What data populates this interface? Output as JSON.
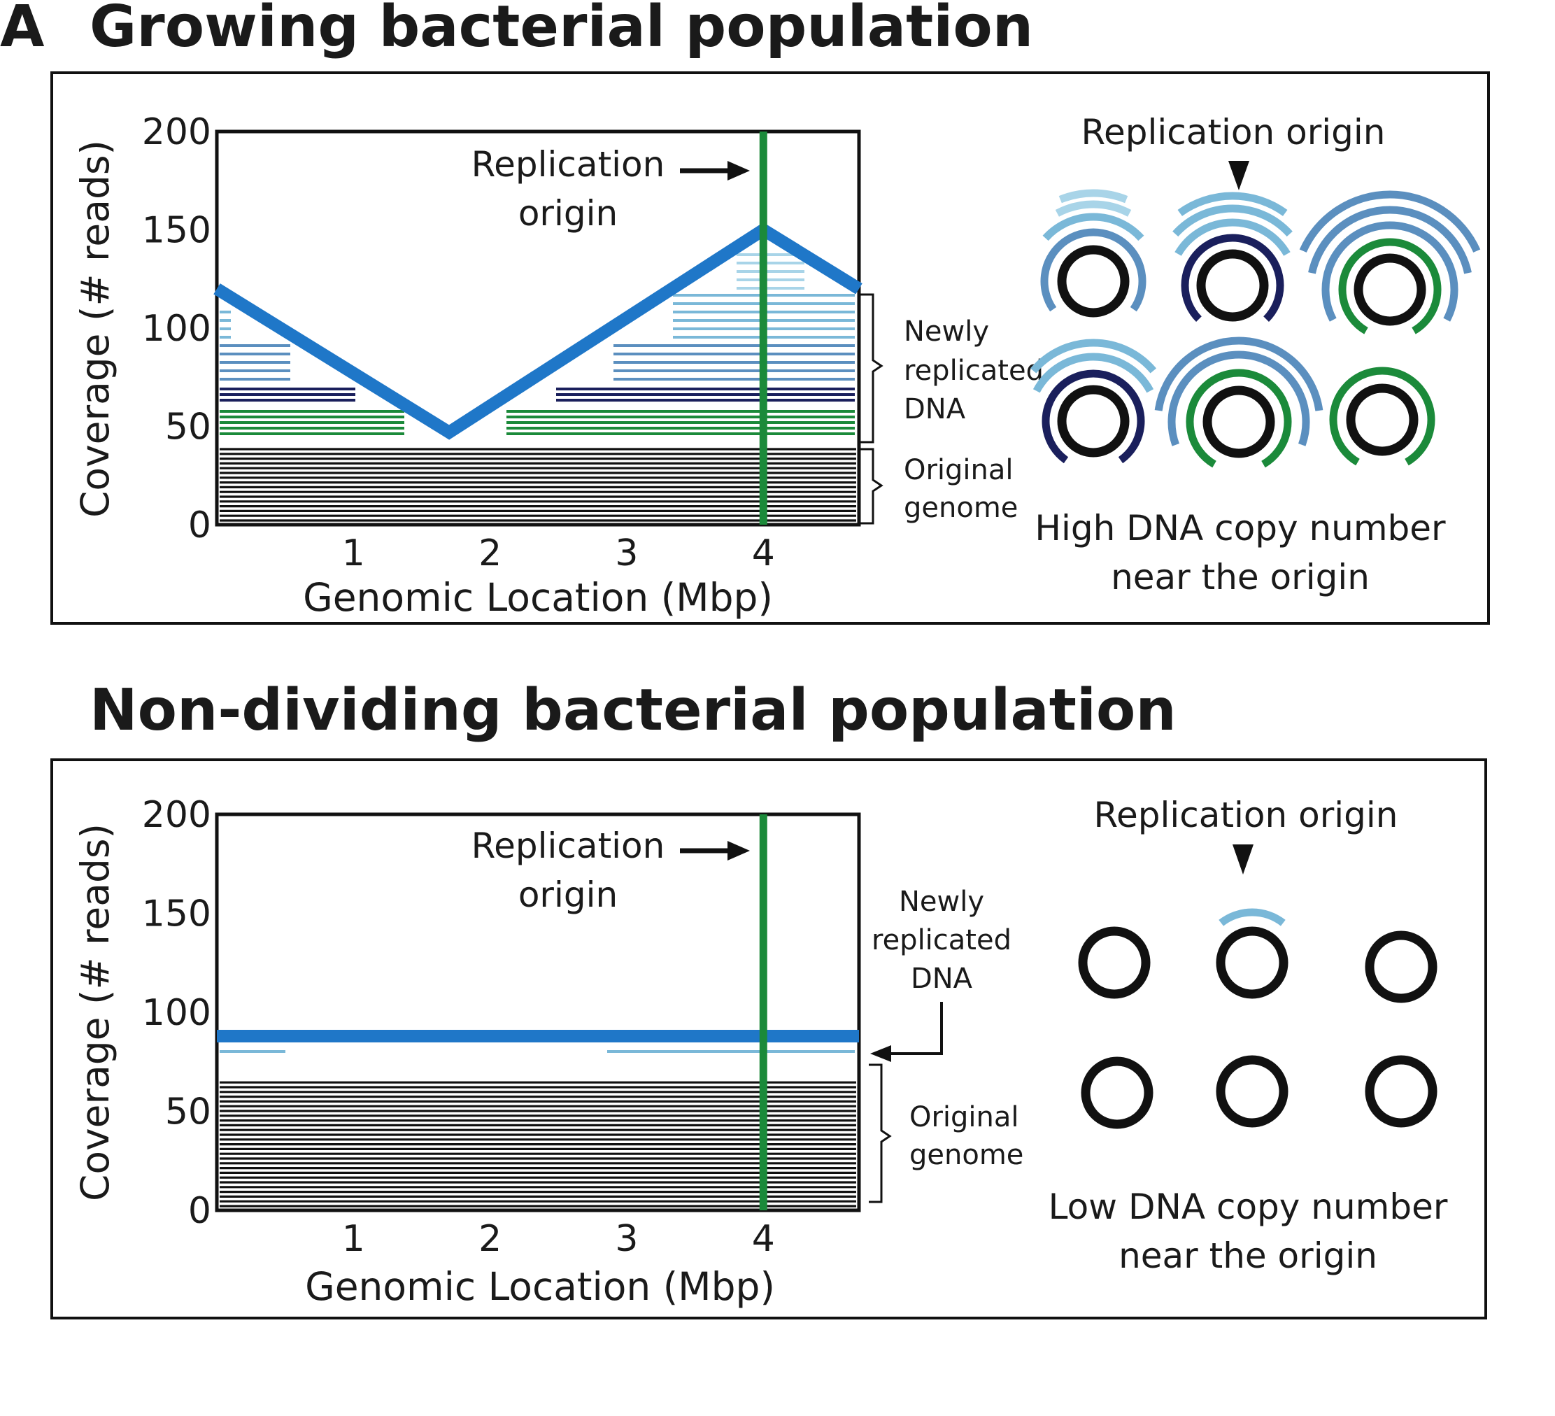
{
  "panel_letter": "A",
  "panels": [
    {
      "title": "Growing bacterial population",
      "chart_data": {
        "type": "line",
        "xlabel": "Genomic Location (Mbp)",
        "ylabel": "Coverage (# reads)",
        "x_ticks": [
          "1",
          "2",
          "3",
          "4"
        ],
        "y_ticks": [
          "0",
          "50",
          "100",
          "150",
          "200"
        ],
        "xlim": [
          0,
          4.7
        ],
        "ylim": [
          0,
          200
        ],
        "series": [
          {
            "x": [
              0,
              1.7,
              4.0,
              4.7
            ],
            "y": [
              120,
              47,
              150,
              120
            ]
          }
        ],
        "origin_x": 4.0
      },
      "origin_label_line1": "Replication",
      "origin_label_line2": "origin",
      "brace_new": [
        "Newly",
        "replicated",
        "DNA"
      ],
      "brace_orig": [
        "Original",
        "genome"
      ],
      "diagram_label": "Replication origin",
      "caption_line1": "High DNA copy number",
      "caption_line2": "near the origin",
      "colors": {
        "coverage": "#1f77c8",
        "origin": "#1b8a3a",
        "gen1": "#1b8a3a",
        "gen2": "#1a1f5c",
        "gen3": "#5b8fbf",
        "gen4": "#7ab8d8",
        "gen5": "#a8d4e8"
      }
    },
    {
      "title": "Non-dividing bacterial population",
      "chart_data": {
        "type": "line",
        "xlabel": "Genomic Location (Mbp)",
        "ylabel": "Coverage (# reads)",
        "x_ticks": [
          "1",
          "2",
          "3",
          "4"
        ],
        "y_ticks": [
          "0",
          "50",
          "100",
          "150",
          "200"
        ],
        "xlim": [
          0,
          4.7
        ],
        "ylim": [
          0,
          200
        ],
        "series": [
          {
            "x": [
              0,
              4.7
            ],
            "y": [
              88,
              88
            ]
          }
        ],
        "origin_x": 4.0
      },
      "origin_label_line1": "Replication",
      "origin_label_line2": "origin",
      "brace_new": [
        "Newly",
        "replicated",
        "DNA"
      ],
      "brace_orig": [
        "Original",
        "genome"
      ],
      "diagram_label": "Replication origin",
      "caption_line1": "Low DNA copy number",
      "caption_line2": "near the origin",
      "colors": {
        "coverage": "#1f77c8",
        "origin": "#1b8a3a",
        "gen4": "#7ab8d8"
      }
    }
  ]
}
